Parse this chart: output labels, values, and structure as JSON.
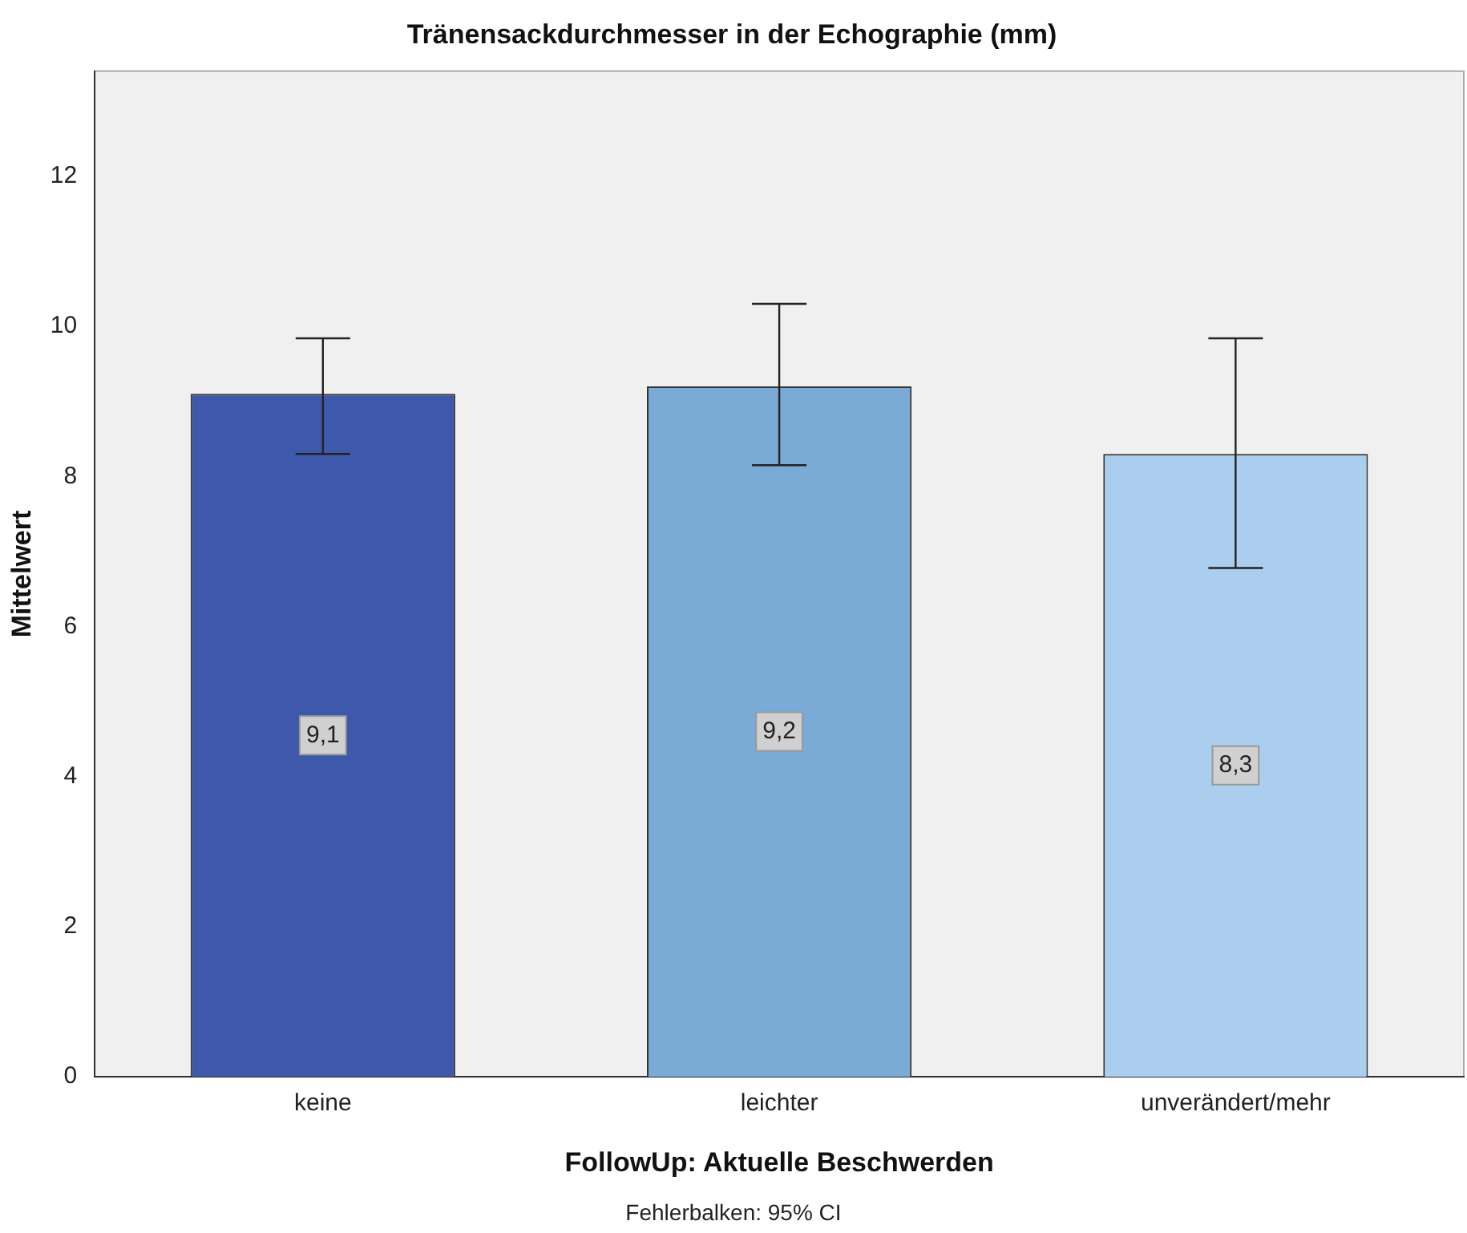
{
  "chart_data": {
    "type": "bar",
    "title": "Tränensackdurchmesser in der Echographie (mm)",
    "xlabel": "FollowUp: Aktuelle Beschwerden",
    "ylabel": "Mittelwert",
    "categories": [
      "keine",
      "leichter",
      "unverändert/mehr"
    ],
    "values": [
      9.1,
      9.2,
      8.3
    ],
    "value_labels": [
      "9,1",
      "9,2",
      "8,3"
    ],
    "colors": [
      "#3e58ac",
      "#7aaad6",
      "#abcdee"
    ],
    "errors": [
      [
        8.3,
        9.84
      ],
      [
        8.15,
        10.3
      ],
      [
        6.78,
        9.84
      ]
    ],
    "ylim": [
      0,
      13.4
    ],
    "yticks": [
      0,
      2,
      4,
      6,
      8,
      10,
      12
    ],
    "grid": false,
    "legend": false,
    "annotations": [
      "Fehlerbalken: 95% CI"
    ]
  }
}
